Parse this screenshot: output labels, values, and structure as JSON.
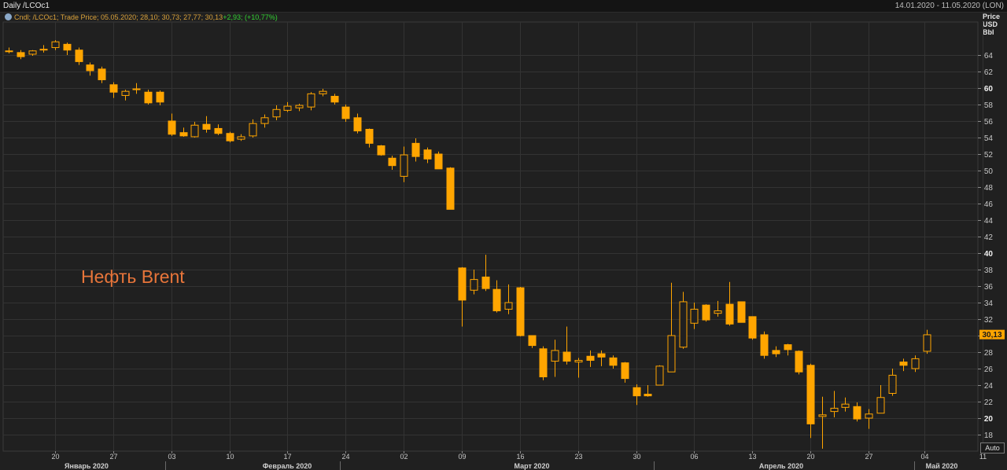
{
  "header": {
    "title": "Daily /LCOc1",
    "date_range": "14.01.2020 - 11.05.2020 (LON)"
  },
  "legend": {
    "text": "Cndl; /LCOc1; Trade Price; 05.05.2020; 28,10; 30,73; 27,77; 30,13",
    "change": "+2,93; (+10,77%)"
  },
  "price_axis_unit": [
    "Price",
    "USD",
    "Bbl"
  ],
  "auto_button": "Auto",
  "annotation": "Нефть Brent",
  "colors": {
    "candle": "#ffa500",
    "background": "#202020",
    "grid": "#333333",
    "annotation": "#e8753a"
  },
  "chart_data": {
    "type": "candlestick",
    "symbol": "/LCOc1",
    "ylim": [
      16,
      66
    ],
    "y_ticks": [
      18,
      20,
      22,
      24,
      26,
      28,
      30,
      32,
      34,
      36,
      38,
      40,
      42,
      44,
      46,
      48,
      50,
      52,
      54,
      56,
      58,
      60,
      62,
      64
    ],
    "y_major_ticks": [
      20,
      40,
      60
    ],
    "last_price_label": "30,13",
    "last_price": 30.13,
    "x_day_labels": [
      "20",
      "27",
      "03",
      "10",
      "17",
      "24",
      "02",
      "09",
      "16",
      "23",
      "30",
      "06",
      "13",
      "20",
      "27",
      "04",
      "11"
    ],
    "x_month_labels": [
      "Январь 2020",
      "Февраль 2020",
      "Март 2020",
      "Апрель 2020",
      "Май 2020"
    ],
    "ohlc": [
      [
        64.5,
        64.9,
        64.2,
        64.4
      ],
      [
        64.3,
        64.6,
        63.5,
        63.8
      ],
      [
        64.1,
        64.6,
        63.9,
        64.5
      ],
      [
        64.6,
        65.2,
        64.3,
        64.7
      ],
      [
        64.9,
        65.8,
        64.6,
        65.6
      ],
      [
        65.3,
        65.5,
        64.0,
        64.6
      ],
      [
        64.6,
        64.9,
        62.8,
        63.2
      ],
      [
        62.8,
        63.1,
        61.5,
        62.1
      ],
      [
        62.3,
        62.6,
        60.6,
        61.0
      ],
      [
        60.4,
        60.7,
        58.8,
        59.5
      ],
      [
        59.1,
        59.8,
        58.5,
        59.6
      ],
      [
        59.8,
        60.6,
        59.3,
        59.9
      ],
      [
        59.5,
        59.8,
        58.0,
        58.2
      ],
      [
        59.5,
        59.7,
        57.9,
        58.3
      ],
      [
        56.0,
        56.9,
        54.2,
        54.4
      ],
      [
        54.6,
        55.2,
        54.1,
        54.2
      ],
      [
        54.1,
        55.9,
        54.0,
        55.5
      ],
      [
        55.6,
        56.6,
        54.6,
        55.0
      ],
      [
        55.1,
        55.6,
        54.3,
        54.5
      ],
      [
        54.5,
        54.7,
        53.4,
        53.6
      ],
      [
        53.8,
        54.4,
        53.6,
        54.1
      ],
      [
        54.2,
        56.2,
        54.0,
        55.7
      ],
      [
        55.7,
        56.8,
        55.2,
        56.4
      ],
      [
        56.5,
        57.9,
        56.1,
        57.4
      ],
      [
        57.3,
        58.3,
        57.1,
        57.8
      ],
      [
        57.6,
        58.1,
        57.2,
        57.9
      ],
      [
        57.7,
        59.5,
        57.3,
        59.3
      ],
      [
        59.3,
        59.9,
        59.0,
        59.6
      ],
      [
        59.0,
        59.3,
        58.0,
        58.3
      ],
      [
        57.7,
        58.0,
        55.9,
        56.3
      ],
      [
        56.4,
        56.9,
        54.5,
        54.8
      ],
      [
        55.0,
        55.1,
        52.8,
        53.3
      ],
      [
        53.0,
        53.1,
        51.8,
        51.9
      ],
      [
        51.5,
        51.8,
        50.1,
        50.6
      ],
      [
        49.3,
        52.9,
        48.6,
        51.9
      ],
      [
        53.3,
        53.9,
        51.1,
        51.7
      ],
      [
        52.5,
        52.8,
        50.9,
        51.4
      ],
      [
        52.0,
        52.3,
        50.5,
        50.2
      ],
      [
        50.3,
        50.4,
        45.3,
        45.3
      ],
      [
        38.2,
        38.3,
        31.1,
        34.3
      ],
      [
        35.5,
        38.0,
        35.0,
        36.8
      ],
      [
        37.1,
        39.8,
        35.4,
        35.7
      ],
      [
        35.6,
        36.7,
        32.8,
        33.0
      ],
      [
        33.2,
        36.2,
        32.6,
        34.0
      ],
      [
        35.8,
        35.9,
        29.9,
        30.0
      ],
      [
        30.0,
        30.0,
        28.5,
        28.8
      ],
      [
        28.4,
        28.7,
        24.6,
        25.0
      ],
      [
        26.9,
        29.5,
        25.0,
        28.2
      ],
      [
        28.0,
        31.1,
        26.5,
        26.9
      ],
      [
        26.8,
        27.3,
        24.9,
        27.0
      ],
      [
        27.5,
        28.2,
        26.2,
        27.0
      ],
      [
        27.8,
        28.2,
        26.3,
        27.4
      ],
      [
        27.3,
        27.6,
        26.0,
        26.4
      ],
      [
        26.7,
        26.8,
        24.3,
        24.8
      ],
      [
        23.7,
        24.1,
        21.6,
        22.7
      ],
      [
        22.9,
        24.0,
        22.6,
        22.7
      ],
      [
        24.0,
        26.4,
        24.2,
        26.3
      ],
      [
        25.6,
        36.4,
        25.6,
        30.0
      ],
      [
        28.6,
        35.3,
        28.4,
        34.1
      ],
      [
        31.5,
        34.0,
        30.8,
        33.2
      ],
      [
        33.7,
        33.8,
        31.7,
        31.9
      ],
      [
        32.7,
        34.2,
        32.3,
        33.0
      ],
      [
        33.8,
        36.5,
        31.2,
        31.4
      ],
      [
        34.1,
        34.1,
        31.6,
        31.6
      ],
      [
        32.3,
        32.3,
        29.5,
        29.7
      ],
      [
        30.1,
        30.5,
        27.2,
        27.6
      ],
      [
        28.2,
        28.7,
        27.4,
        27.8
      ],
      [
        28.9,
        29.0,
        27.6,
        28.3
      ],
      [
        28.1,
        28.2,
        25.3,
        25.6
      ],
      [
        26.4,
        26.6,
        17.6,
        19.3
      ],
      [
        20.2,
        22.6,
        16.3,
        20.4
      ],
      [
        20.8,
        23.3,
        20.1,
        21.2
      ],
      [
        21.3,
        22.5,
        20.8,
        21.7
      ],
      [
        21.4,
        21.9,
        19.6,
        19.9
      ],
      [
        20.0,
        21.1,
        18.7,
        20.5
      ],
      [
        20.6,
        24.0,
        20.6,
        22.5
      ],
      [
        23.0,
        26.0,
        22.7,
        25.2
      ],
      [
        26.8,
        27.2,
        25.7,
        26.4
      ],
      [
        26.0,
        27.6,
        25.6,
        27.2
      ],
      [
        28.1,
        30.7,
        27.8,
        30.1
      ]
    ]
  }
}
